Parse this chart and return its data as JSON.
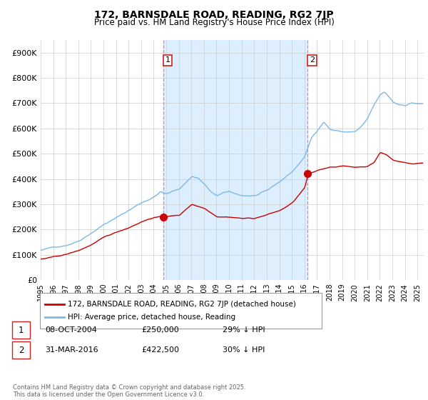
{
  "title": "172, BARNSDALE ROAD, READING, RG2 7JP",
  "subtitle": "Price paid vs. HM Land Registry's House Price Index (HPI)",
  "legend_line1": "172, BARNSDALE ROAD, READING, RG2 7JP (detached house)",
  "legend_line2": "HPI: Average price, detached house, Reading",
  "footnote": "Contains HM Land Registry data © Crown copyright and database right 2025.\nThis data is licensed under the Open Government Licence v3.0.",
  "hpi_color": "#7db8e8",
  "price_color": "#cc0000",
  "vline_color": "#e88888",
  "shade_color": "#ddeeff",
  "ylim": [
    0,
    950000
  ],
  "ytick_labels": [
    "£0",
    "£100K",
    "£200K",
    "£300K",
    "£400K",
    "£500K",
    "£600K",
    "£700K",
    "£800K",
    "£900K"
  ],
  "yticks": [
    0,
    100000,
    200000,
    300000,
    400000,
    500000,
    600000,
    700000,
    800000,
    900000
  ],
  "xlim_start": 1995.0,
  "xlim_end": 2025.5,
  "sale1_x": 2004.77,
  "sale1_y": 250000,
  "sale2_x": 2016.25,
  "sale2_y": 422500,
  "ann1_label": "1",
  "ann2_label": "2",
  "ann1_date": "08-OCT-2004",
  "ann1_price": "£250,000",
  "ann1_hpi": "29% ↓ HPI",
  "ann2_date": "31-MAR-2016",
  "ann2_price": "£422,500",
  "ann2_hpi": "30% ↓ HPI"
}
